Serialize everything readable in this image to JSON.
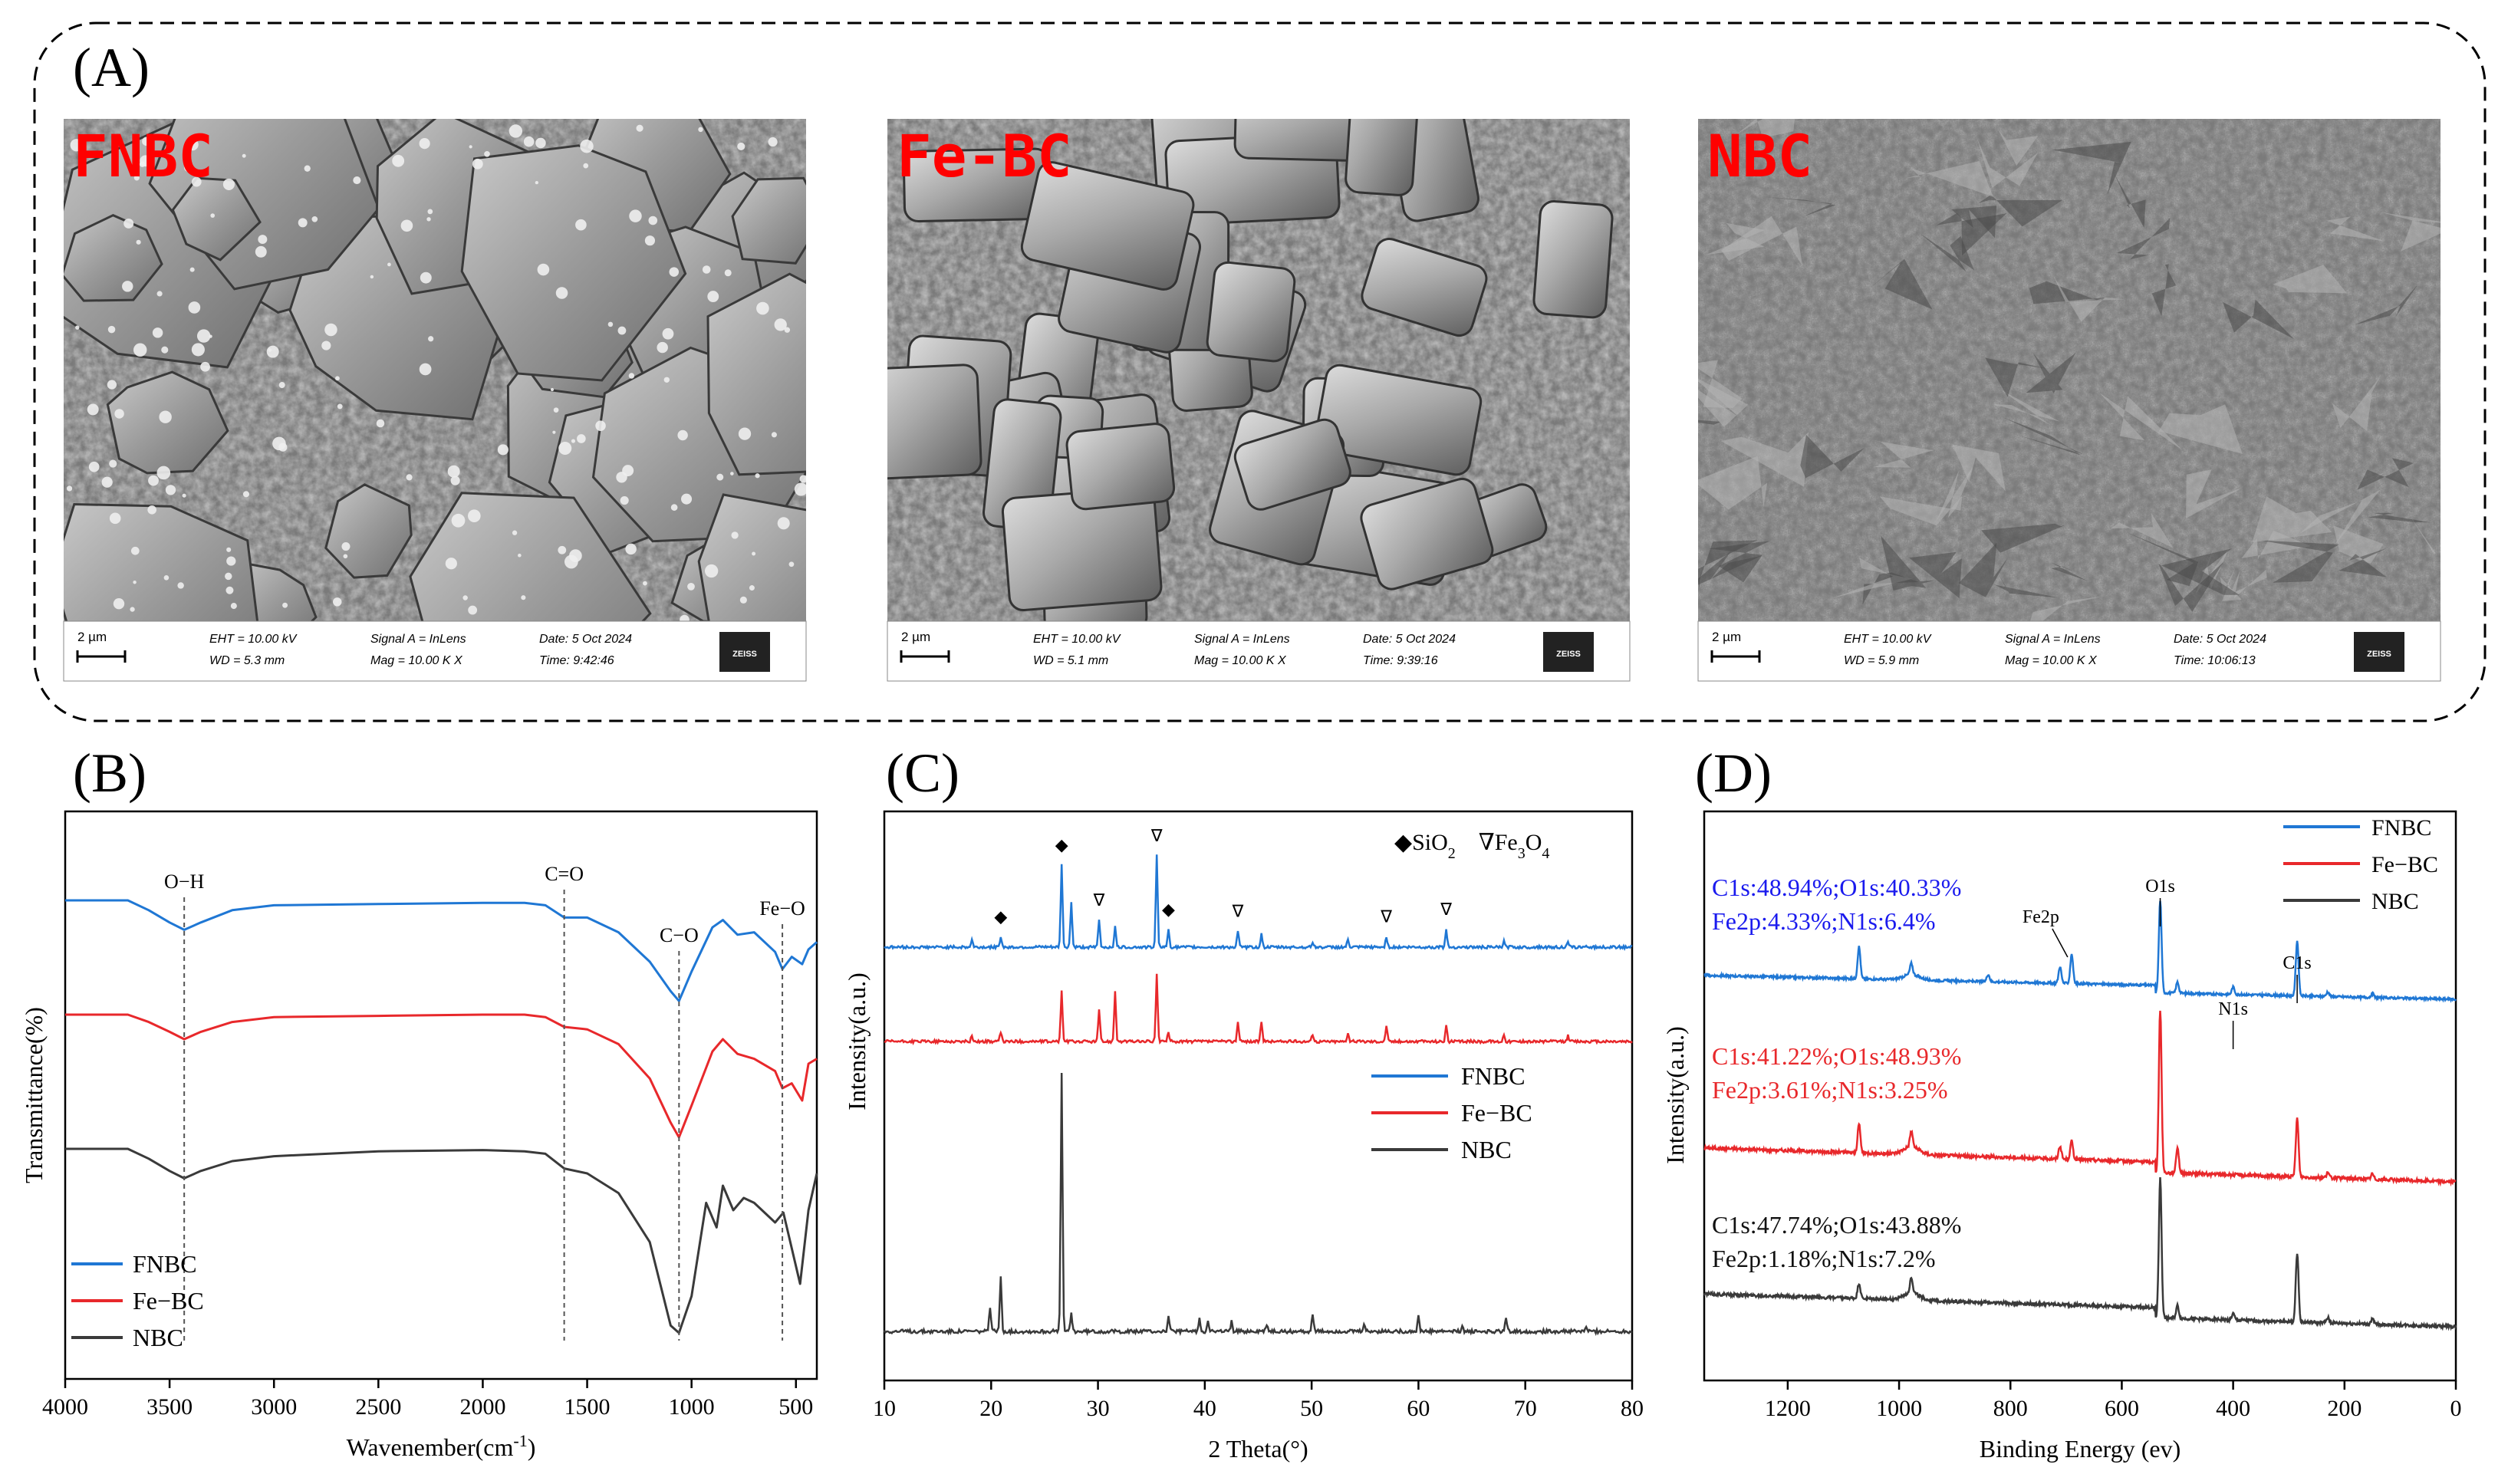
{
  "panels": {
    "A": {
      "label": "(A)"
    },
    "B": {
      "label": "(B)"
    },
    "C": {
      "label": "(C)"
    },
    "D": {
      "label": "(D)"
    }
  },
  "sem": [
    {
      "sample": "FNBC",
      "scale": "2 µm",
      "eht": "EHT = 10.00 kV",
      "wd": "WD =  5.3 mm",
      "signal": "Signal A = InLens",
      "mag": "Mag =   10.00 K X",
      "date": "Date: 5 Oct 2024",
      "time": "Time: 9:42:46",
      "logo": "ZEISS",
      "texture": "crystals-particles"
    },
    {
      "sample": "Fe-BC",
      "scale": "2 µm",
      "eht": "EHT = 10.00 kV",
      "wd": "WD =  5.1 mm",
      "signal": "Signal A = InLens",
      "mag": "Mag =   10.00 K X",
      "date": "Date: 5 Oct 2024",
      "time": "Time: 9:39:16",
      "logo": "ZEISS",
      "texture": "cubic-crystals"
    },
    {
      "sample": "NBC",
      "scale": "2 µm",
      "eht": "EHT = 10.00 kV",
      "wd": "WD =  5.9 mm",
      "signal": "Signal A = InLens",
      "mag": "Mag =   10.00 K X",
      "date": "Date: 5 Oct 2024",
      "time": "Time: 10:06:13",
      "logo": "ZEISS",
      "texture": "rough-porous"
    }
  ],
  "colors": {
    "FNBC": "#1f77d4",
    "Fe-BC": "#e8282b",
    "NBC": "#3a3a3a",
    "sample_label": "#ff0000"
  },
  "chart_data": [
    {
      "type": "line",
      "panel": "B",
      "xlabel": "Wavenember(cm",
      "xlabel_sup": "-1",
      "xlabel_tail": ")",
      "ylabel": "Transmittance(%)",
      "xlim": [
        4000,
        400
      ],
      "xticks": [
        "4000",
        "3500",
        "3000",
        "2500",
        "2000",
        "1500",
        "1000",
        "500"
      ],
      "legend": [
        "FNBC",
        "Fe−BC",
        "NBC"
      ],
      "legend_position": "bottom-left",
      "annotations": [
        {
          "text": "O−H",
          "x": 3430
        },
        {
          "text": "C=O",
          "x": 1610
        },
        {
          "text": "C−O",
          "x": 1060
        },
        {
          "text": "Fe−O",
          "x": 565
        }
      ],
      "series": [
        {
          "name": "FNBC",
          "points": [
            [
              4000,
              0.05
            ],
            [
              3700,
              0.05
            ],
            [
              3600,
              0.09
            ],
            [
              3500,
              0.14
            ],
            [
              3430,
              0.17
            ],
            [
              3350,
              0.14
            ],
            [
              3200,
              0.09
            ],
            [
              3000,
              0.07
            ],
            [
              2500,
              0.065
            ],
            [
              2000,
              0.06
            ],
            [
              1800,
              0.06
            ],
            [
              1700,
              0.07
            ],
            [
              1610,
              0.12
            ],
            [
              1500,
              0.12
            ],
            [
              1350,
              0.18
            ],
            [
              1200,
              0.3
            ],
            [
              1100,
              0.42
            ],
            [
              1060,
              0.46
            ],
            [
              1000,
              0.34
            ],
            [
              900,
              0.16
            ],
            [
              850,
              0.13
            ],
            [
              780,
              0.19
            ],
            [
              700,
              0.18
            ],
            [
              600,
              0.26
            ],
            [
              565,
              0.33
            ],
            [
              520,
              0.28
            ],
            [
              470,
              0.31
            ],
            [
              440,
              0.25
            ],
            [
              400,
              0.22
            ]
          ]
        },
        {
          "name": "Fe−BC",
          "points": [
            [
              4000,
              0.0
            ],
            [
              3700,
              0.0
            ],
            [
              3600,
              0.03
            ],
            [
              3500,
              0.07
            ],
            [
              3430,
              0.1
            ],
            [
              3350,
              0.07
            ],
            [
              3200,
              0.03
            ],
            [
              3000,
              0.01
            ],
            [
              2500,
              0.005
            ],
            [
              2000,
              0.0
            ],
            [
              1800,
              0.0
            ],
            [
              1700,
              0.01
            ],
            [
              1610,
              0.05
            ],
            [
              1500,
              0.06
            ],
            [
              1350,
              0.12
            ],
            [
              1200,
              0.26
            ],
            [
              1100,
              0.44
            ],
            [
              1060,
              0.5
            ],
            [
              1000,
              0.37
            ],
            [
              900,
              0.15
            ],
            [
              850,
              0.1
            ],
            [
              780,
              0.16
            ],
            [
              700,
              0.18
            ],
            [
              600,
              0.23
            ],
            [
              565,
              0.3
            ],
            [
              520,
              0.28
            ],
            [
              470,
              0.35
            ],
            [
              440,
              0.2
            ],
            [
              400,
              0.18
            ]
          ]
        },
        {
          "name": "NBC",
          "points": [
            [
              4000,
              0.0
            ],
            [
              3700,
              0.0
            ],
            [
              3600,
              0.04
            ],
            [
              3500,
              0.09
            ],
            [
              3430,
              0.12
            ],
            [
              3350,
              0.09
            ],
            [
              3200,
              0.05
            ],
            [
              3000,
              0.03
            ],
            [
              2500,
              0.01
            ],
            [
              2000,
              0.005
            ],
            [
              1800,
              0.01
            ],
            [
              1700,
              0.02
            ],
            [
              1610,
              0.08
            ],
            [
              1500,
              0.1
            ],
            [
              1350,
              0.18
            ],
            [
              1200,
              0.38
            ],
            [
              1100,
              0.72
            ],
            [
              1060,
              0.75
            ],
            [
              1000,
              0.6
            ],
            [
              930,
              0.22
            ],
            [
              880,
              0.32
            ],
            [
              850,
              0.15
            ],
            [
              800,
              0.25
            ],
            [
              750,
              0.2
            ],
            [
              700,
              0.22
            ],
            [
              600,
              0.3
            ],
            [
              560,
              0.26
            ],
            [
              480,
              0.55
            ],
            [
              440,
              0.25
            ],
            [
              400,
              0.1
            ]
          ]
        }
      ]
    },
    {
      "type": "line",
      "panel": "C",
      "xlabel": "2 Theta(°)",
      "ylabel": "Intensity(a.u.)",
      "xlim": [
        10,
        80
      ],
      "xticks": [
        "10",
        "20",
        "30",
        "40",
        "50",
        "60",
        "70",
        "80"
      ],
      "legend": [
        "FNBC",
        "Fe−BC",
        "NBC"
      ],
      "legend_position": "middle-right",
      "phase_legend": {
        "sio2_symbol": "◆",
        "sio2": "SiO",
        "sio2_sub": "2",
        "fe3o4_symbol": "∇",
        "fe3o4": "Fe",
        "fe3o4_sub1": "3",
        "fe3o4_mid": "O",
        "fe3o4_sub2": "4"
      },
      "markers": [
        {
          "symbol": "◆",
          "x": 20.9
        },
        {
          "symbol": "◆",
          "x": 26.6
        },
        {
          "symbol": "∇",
          "x": 30.1
        },
        {
          "symbol": "∇",
          "x": 35.5
        },
        {
          "symbol": "◆",
          "x": 36.6
        },
        {
          "symbol": "∇",
          "x": 43.1
        },
        {
          "symbol": "∇",
          "x": 57.0
        },
        {
          "symbol": "∇",
          "x": 62.6
        }
      ],
      "series": [
        {
          "name": "FNBC",
          "peaks": [
            [
              18.2,
              0.08
            ],
            [
              20.9,
              0.12
            ],
            [
              26.6,
              0.9
            ],
            [
              27.5,
              0.5
            ],
            [
              30.1,
              0.3
            ],
            [
              31.6,
              0.22
            ],
            [
              35.5,
              1.0
            ],
            [
              36.6,
              0.2
            ],
            [
              43.1,
              0.18
            ],
            [
              45.3,
              0.14
            ],
            [
              50.1,
              0.06
            ],
            [
              53.4,
              0.08
            ],
            [
              57.0,
              0.12
            ],
            [
              62.6,
              0.2
            ],
            [
              68.0,
              0.06
            ],
            [
              74.0,
              0.05
            ]
          ]
        },
        {
          "name": "Fe−BC",
          "peaks": [
            [
              18.2,
              0.06
            ],
            [
              20.9,
              0.1
            ],
            [
              26.6,
              0.55
            ],
            [
              30.1,
              0.35
            ],
            [
              31.6,
              0.55
            ],
            [
              35.5,
              0.75
            ],
            [
              36.6,
              0.1
            ],
            [
              43.1,
              0.22
            ],
            [
              45.3,
              0.22
            ],
            [
              50.1,
              0.08
            ],
            [
              53.4,
              0.1
            ],
            [
              57.0,
              0.18
            ],
            [
              62.6,
              0.18
            ],
            [
              68.0,
              0.08
            ],
            [
              74.0,
              0.06
            ]
          ]
        },
        {
          "name": "NBC",
          "peaks": [
            [
              19.9,
              0.2
            ],
            [
              20.9,
              0.45
            ],
            [
              26.6,
              2.1
            ],
            [
              27.5,
              0.15
            ],
            [
              36.6,
              0.12
            ],
            [
              39.5,
              0.1
            ],
            [
              40.3,
              0.1
            ],
            [
              42.5,
              0.08
            ],
            [
              45.8,
              0.06
            ],
            [
              50.1,
              0.15
            ],
            [
              54.9,
              0.06
            ],
            [
              60.0,
              0.12
            ],
            [
              64.1,
              0.05
            ],
            [
              68.2,
              0.12
            ],
            [
              75.7,
              0.04
            ]
          ]
        }
      ]
    },
    {
      "type": "line",
      "panel": "D",
      "xlabel": "Binding Energy (ev)",
      "ylabel": "Intensity(a.u.)",
      "xlim": [
        1350,
        0
      ],
      "xticks": [
        "1200",
        "1000",
        "800",
        "600",
        "400",
        "200",
        "0"
      ],
      "legend": [
        "FNBC",
        "Fe−BC",
        "NBC"
      ],
      "legend_position": "top-right",
      "peak_labels": [
        {
          "text": "Fe2p",
          "x": 711
        },
        {
          "text": "O1s",
          "x": 531
        },
        {
          "text": "N1s",
          "x": 400
        },
        {
          "text": "C1s",
          "x": 285
        }
      ],
      "compositions": [
        {
          "series": "FNBC",
          "line1": "C1s:48.94%;O1s:40.33%",
          "line2": "Fe2p:4.33%;N1s:6.4%"
        },
        {
          "series": "Fe−BC",
          "line1": "C1s:41.22%;O1s:48.93%",
          "line2": "Fe2p:3.61%;N1s:3.25%"
        },
        {
          "series": "NBC",
          "line1": "C1s:47.74%;O1s:43.88%",
          "line2": "Fe2p:1.18%;N1s:7.2%"
        }
      ],
      "series": [
        {
          "name": "FNBC",
          "peaks": [
            [
              1072,
              0.35
            ],
            [
              978,
              0.12
            ],
            [
              840,
              0.08
            ],
            [
              711,
              0.18
            ],
            [
              690,
              0.32
            ],
            [
              531,
              1.0
            ],
            [
              500,
              0.12
            ],
            [
              400,
              0.08
            ],
            [
              285,
              0.6
            ],
            [
              230,
              0.05
            ],
            [
              150,
              0.04
            ]
          ]
        },
        {
          "name": "Fe−BC",
          "peaks": [
            [
              1072,
              0.22
            ],
            [
              978,
              0.12
            ],
            [
              711,
              0.1
            ],
            [
              690,
              0.14
            ],
            [
              531,
              1.25
            ],
            [
              500,
              0.2
            ],
            [
              285,
              0.45
            ],
            [
              230,
              0.04
            ],
            [
              150,
              0.04
            ]
          ]
        },
        {
          "name": "NBC",
          "peaks": [
            [
              1072,
              0.12
            ],
            [
              978,
              0.12
            ],
            [
              531,
              1.1
            ],
            [
              500,
              0.1
            ],
            [
              400,
              0.05
            ],
            [
              285,
              0.55
            ],
            [
              230,
              0.04
            ],
            [
              150,
              0.04
            ]
          ]
        }
      ]
    }
  ]
}
